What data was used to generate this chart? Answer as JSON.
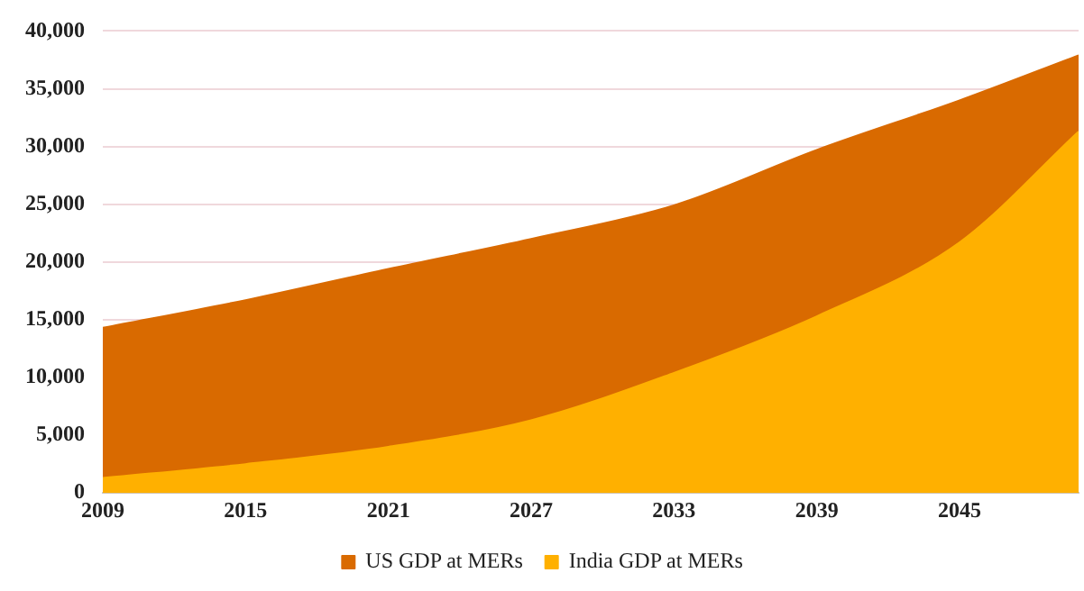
{
  "chart_data": {
    "type": "area",
    "x": [
      2009,
      2015,
      2021,
      2027,
      2033,
      2039,
      2045,
      2050
    ],
    "series": [
      {
        "name": "US GDP at MERs",
        "color": "#d96a00",
        "values": [
          14300,
          16700,
          19400,
          22000,
          24900,
          29700,
          34000,
          37900
        ]
      },
      {
        "name": "India GDP at MERs",
        "color": "#ffb000",
        "values": [
          1300,
          2500,
          4000,
          6300,
          10400,
          15300,
          21700,
          31300
        ]
      }
    ],
    "xlim": [
      2009,
      2050
    ],
    "xticks": [
      2009,
      2015,
      2021,
      2027,
      2033,
      2039,
      2045
    ],
    "ylim": [
      0,
      40000
    ],
    "yticks": [
      {
        "value": 0,
        "label": "0"
      },
      {
        "value": 5000,
        "label": "5,000"
      },
      {
        "value": 10000,
        "label": "10,000"
      },
      {
        "value": 15000,
        "label": "15,000"
      },
      {
        "value": 20000,
        "label": "20,000"
      },
      {
        "value": 25000,
        "label": "25,000"
      },
      {
        "value": 30000,
        "label": "30,000"
      },
      {
        "value": 35000,
        "label": "35,000"
      },
      {
        "value": 40000,
        "label": "40,000"
      }
    ],
    "grid": "y",
    "legend": "bottom"
  }
}
